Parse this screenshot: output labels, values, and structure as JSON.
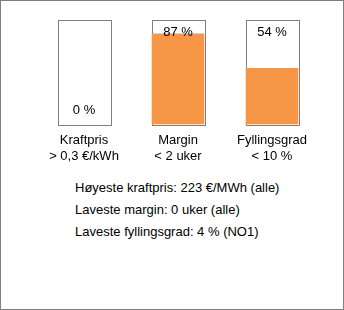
{
  "chart_data": {
    "type": "bar",
    "categories": [
      [
        "Kraftpris",
        "> 0,3 €/kWh"
      ],
      [
        "Margin",
        "< 2 uker"
      ],
      [
        "Fyllingsgrad",
        "< 10 %"
      ]
    ],
    "values": [
      0,
      87,
      54
    ],
    "value_labels": [
      "0 %",
      "87 %",
      "54 %"
    ],
    "color": "#f79646",
    "ylim": [
      0,
      100
    ],
    "tick_labels": "x",
    "grid": false,
    "data_labels": true,
    "annotations": [
      "Høyeste kraftpris: 223 €/MWh (alle)",
      "Laveste margin: 0 uker (alle)",
      "Laveste fyllingsgrad: 4 % (NO1)"
    ]
  }
}
